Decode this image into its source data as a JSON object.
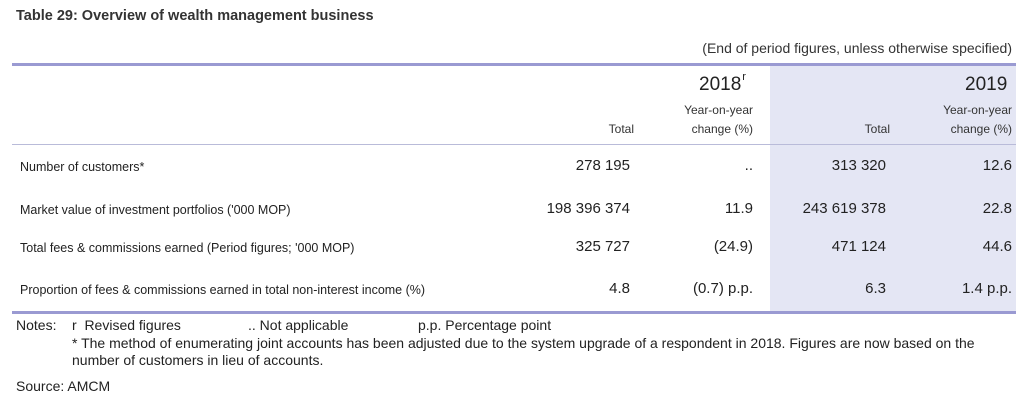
{
  "title": "Table 29: Overview of wealth management business",
  "subtitle": "(End of period figures, unless otherwise specified)",
  "years": [
    {
      "label": "2018",
      "marker": "r"
    },
    {
      "label": "2019",
      "marker": ""
    }
  ],
  "column_headers": {
    "total": "Total",
    "yoy_line1": "Year-on-year",
    "yoy_line2": "change (%)"
  },
  "rows": [
    {
      "label": "Number of customers*",
      "total_2018": "278 195",
      "yoy_2018": "..",
      "total_2019": "313 320",
      "yoy_2019": "12.6"
    },
    {
      "label": "Market value of investment portfolios ('000 MOP)",
      "total_2018": "198 396 374",
      "yoy_2018": "11.9",
      "total_2019": "243 619 378",
      "yoy_2019": "22.8"
    },
    {
      "label": "Total fees & commissions earned (Period figures; '000 MOP)",
      "total_2018": "325 727",
      "yoy_2018": "(24.9)",
      "total_2019": "471 124",
      "yoy_2019": "44.6"
    },
    {
      "label": "Proportion of fees & commissions earned in total non-interest income (%)",
      "total_2018": "4.8",
      "yoy_2018": "(0.7) p.p.",
      "total_2019": "6.3",
      "yoy_2019": "1.4 p.p."
    }
  ],
  "notes": {
    "prefix": "Notes:",
    "items": [
      "r  Revised figures",
      ".. Not applicable",
      "p.p. Percentage point"
    ],
    "footnote": "* The method of enumerating joint accounts has been adjusted due to the system upgrade of a respondent in 2018. Figures are now based on the number of customers in lieu of accounts."
  },
  "source": "Source: AMCM"
}
